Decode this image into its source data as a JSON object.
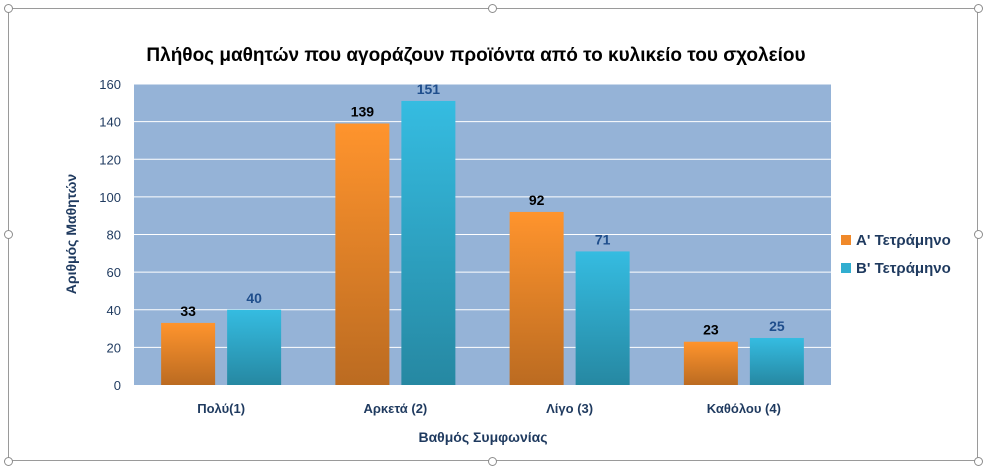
{
  "chart_data": {
    "type": "bar",
    "title": "Πλήθος μαθητών που αγοράζουν προϊόντα από το κυλικείο του σχολείου",
    "xlabel": "Βαθμός Συμφωνίας",
    "ylabel": "Αριθμός Μαθητών",
    "categories": [
      "Πολύ(1)",
      "Αρκετά (2)",
      "Λίγο (3)",
      "Καθόλου (4)"
    ],
    "series": [
      {
        "name": "Α' Τετράμηνο",
        "values": [
          33,
          139,
          92,
          23
        ],
        "color": "#f0892a",
        "label_color": "#000000"
      },
      {
        "name": "Β' Τετράμηνο",
        "values": [
          40,
          151,
          71,
          25
        ],
        "color": "#31aed0",
        "label_color": "#1f4e8c"
      }
    ],
    "ylim": [
      0,
      160
    ],
    "yticks": [
      0,
      20,
      40,
      60,
      80,
      100,
      120,
      140,
      160
    ],
    "grid": true,
    "legend": "right",
    "plot_background": "#95b3d7"
  }
}
